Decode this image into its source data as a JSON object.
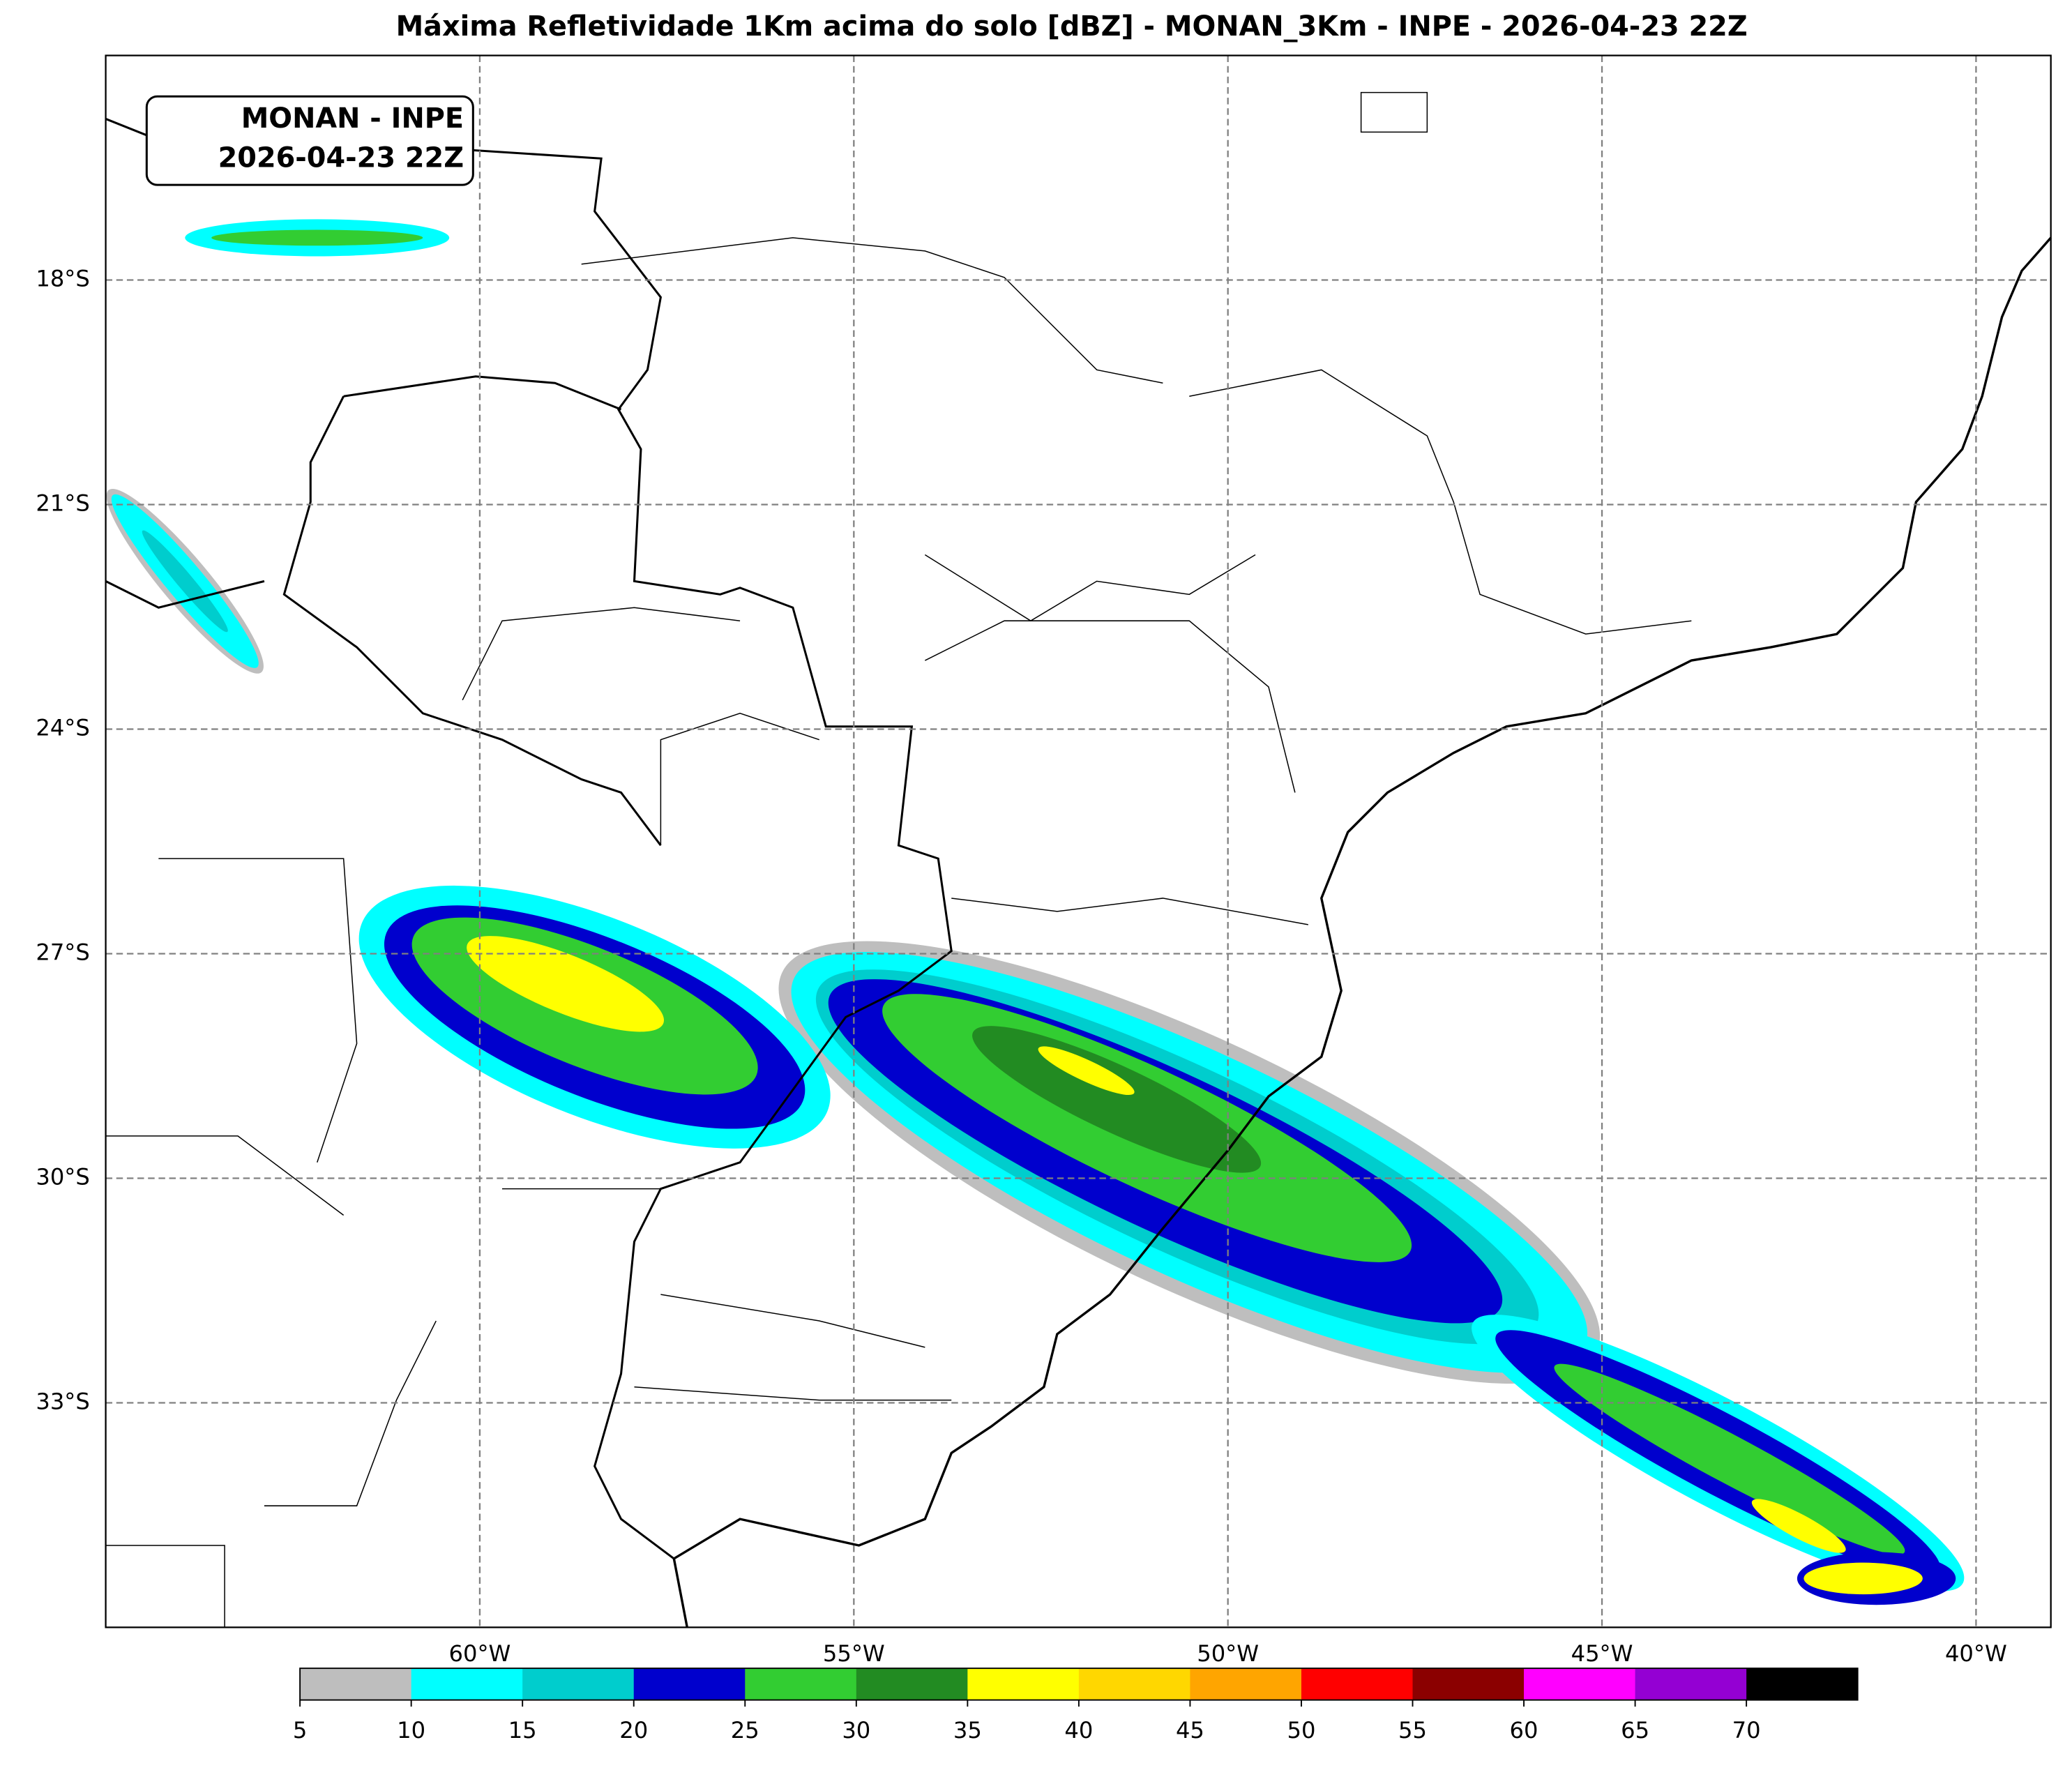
{
  "title": "Máxima Refletividade 1Km acima do solo [dBZ] - MONAN_3Km - INPE - 2026-04-23 22Z",
  "inset": [
    "MONAN - INPE",
    "2026-04-23 22Z"
  ],
  "map": {
    "lonlim": [
      -65,
      -39
    ],
    "latlim": [
      -36,
      -15
    ],
    "lon_ticks": [
      {
        "value": -60,
        "label": "60°W"
      },
      {
        "value": -55,
        "label": "55°W"
      },
      {
        "value": -50,
        "label": "50°W"
      },
      {
        "value": -45,
        "label": "45°W"
      },
      {
        "value": -40,
        "label": "40°W"
      }
    ],
    "lat_ticks": [
      {
        "value": -18,
        "label": "18°S"
      },
      {
        "value": -21,
        "label": "21°S"
      },
      {
        "value": -24,
        "label": "24°S"
      },
      {
        "value": -27,
        "label": "27°S"
      },
      {
        "value": -30,
        "label": "30°S"
      },
      {
        "value": -33,
        "label": "33°S"
      }
    ]
  },
  "colorbar": {
    "levels": [
      5,
      10,
      15,
      20,
      25,
      30,
      35,
      40,
      45,
      50,
      55,
      60,
      65,
      70
    ],
    "colors": [
      "#bebebe",
      "#00ffff",
      "#00cdcd",
      "#0000cd",
      "#32cd32",
      "#228b22",
      "#ffff00",
      "#ffd700",
      "#ffa500",
      "#ff0000",
      "#8b0000",
      "#ff00ff",
      "#9400d3",
      "#000000"
    ]
  }
}
